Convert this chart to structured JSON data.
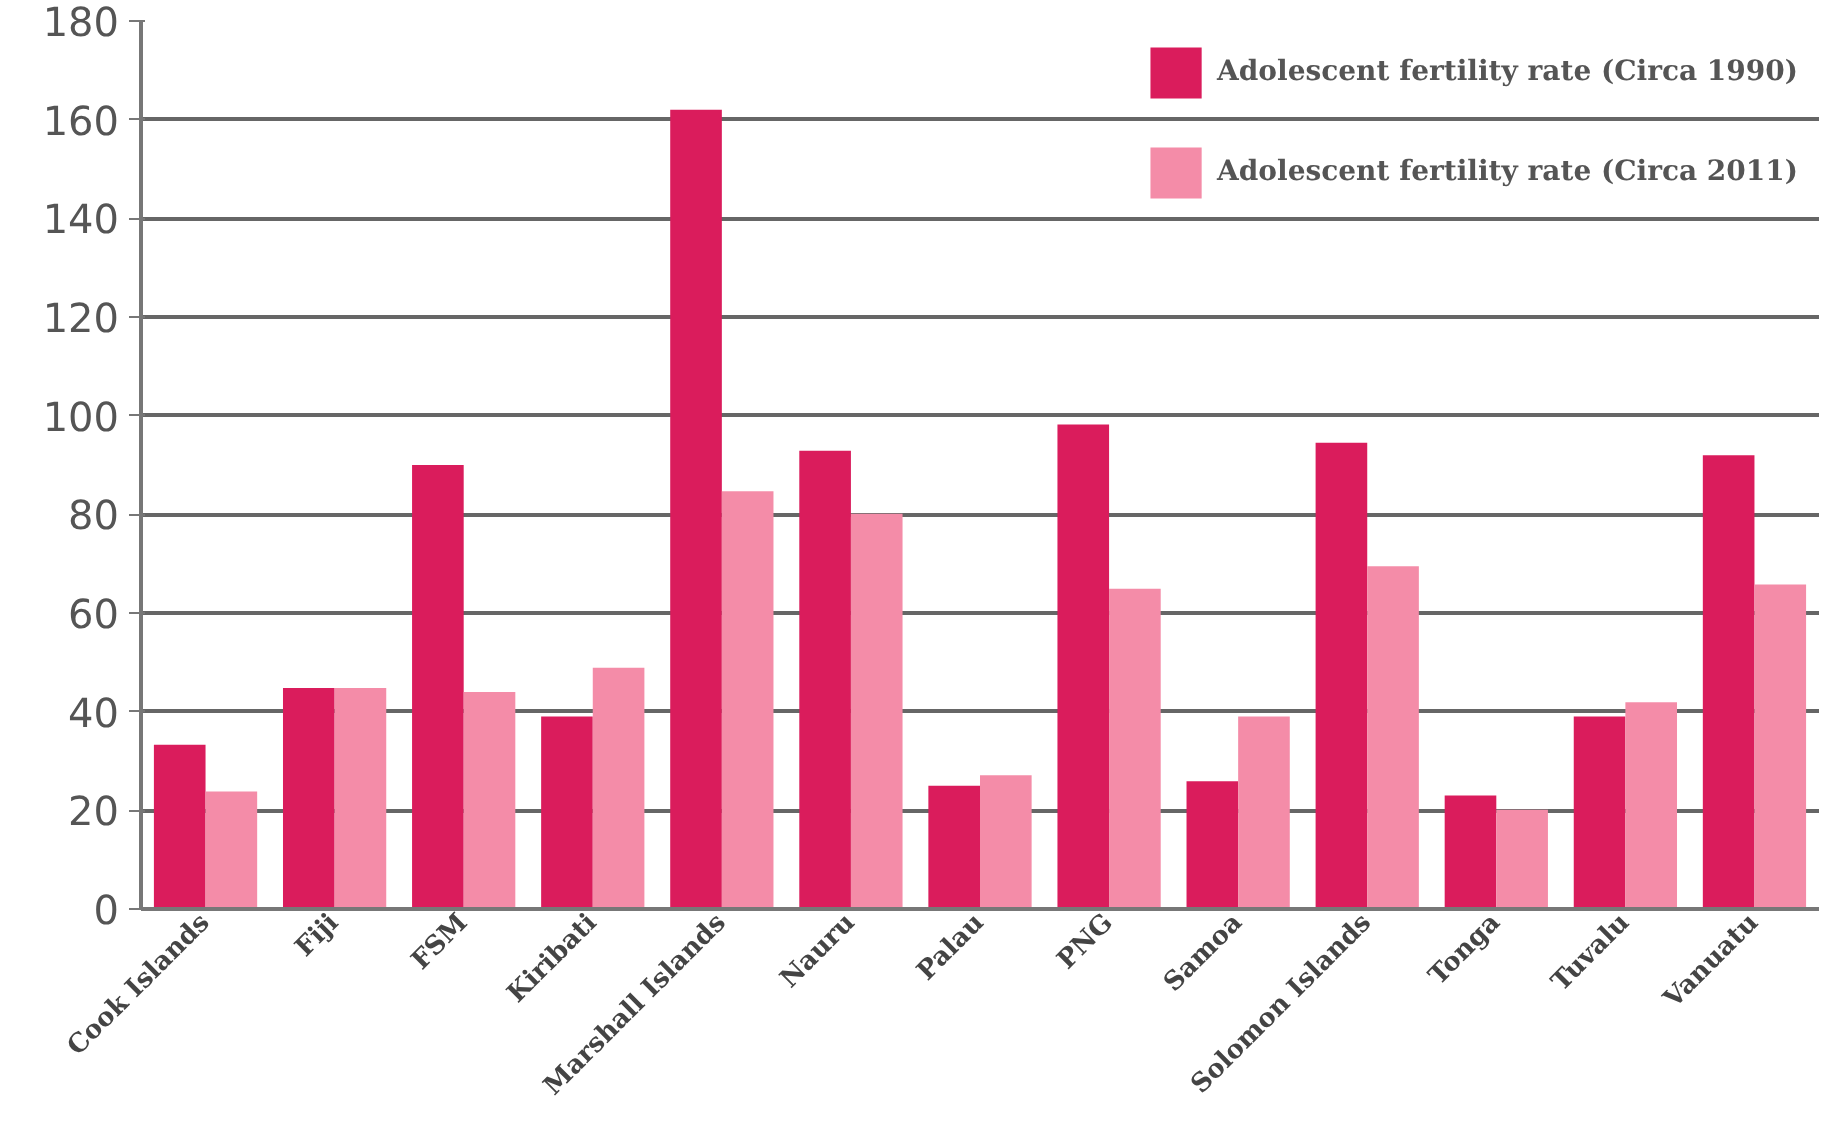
{
  "chart_data": {
    "type": "bar",
    "categories": [
      "Cook Islands",
      "Fiji",
      "FSM",
      "Kiribati",
      "Marshall Islands",
      "Nauru",
      "Palau",
      "PNG",
      "Samoa",
      "Solomon Islands",
      "Tonga",
      "Tuvalu",
      "Vanuatu"
    ],
    "series": [
      {
        "name": "Adolescent fertility rate (Circa 1990)",
        "color": "#da1c5c",
        "values": [
          33.3,
          44.8,
          90,
          39,
          162,
          92.9,
          25,
          98.2,
          25.9,
          94.5,
          23,
          39,
          92
        ]
      },
      {
        "name": "Adolescent fertility rate (Circa 2011)",
        "color": "#f48ca8",
        "values": [
          23.8,
          44.8,
          44,
          48.9,
          84.7,
          80.1,
          27.1,
          64.9,
          39,
          69.5,
          20.1,
          41.9,
          65.8
        ]
      }
    ],
    "ylim": [
      0,
      180
    ],
    "yticks": [
      0,
      20,
      40,
      60,
      80,
      100,
      120,
      140,
      160,
      180
    ],
    "grid": "y",
    "legend": "top right"
  }
}
